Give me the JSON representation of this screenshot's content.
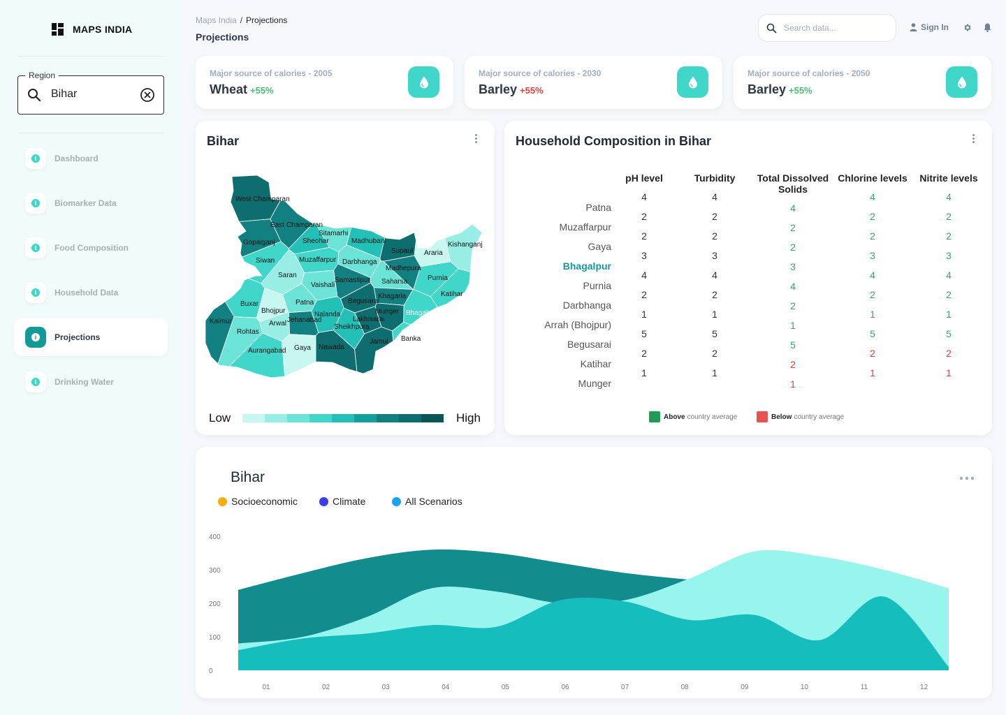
{
  "brand": {
    "name": "MAPS INDIA"
  },
  "region": {
    "label": "Region",
    "value": "Bihar"
  },
  "nav": [
    {
      "label": "Dashboard",
      "active": false
    },
    {
      "label": "Biomarker Data",
      "active": false
    },
    {
      "label": "Food Composition",
      "active": false
    },
    {
      "label": "Household Data",
      "active": false
    },
    {
      "label": "Projections",
      "active": true
    },
    {
      "label": "Drinking Water",
      "active": false
    }
  ],
  "header": {
    "breadcrumb_root": "Maps India",
    "breadcrumb_sep": "/",
    "breadcrumb_current": "Projections",
    "page_title": "Projections",
    "search_placeholder": "Search data...",
    "signin": "Sign In"
  },
  "stats": [
    {
      "label": "Major source of calories - 2005",
      "value": "Wheat",
      "change": "+55%",
      "direction": "up"
    },
    {
      "label": "Major source of calories - 2030",
      "value": "Barley",
      "change": "+55%",
      "direction": "down"
    },
    {
      "label": "Major source of calories - 2050",
      "value": "Barley",
      "change": "+55%",
      "direction": "up"
    }
  ],
  "map": {
    "title": "Bihar",
    "legend_low": "Low",
    "legend_high": "High",
    "legend_colors": [
      "#c8f7f2",
      "#98eee5",
      "#6be3d7",
      "#40d6c9",
      "#22c0b6",
      "#159f9b",
      "#127f80",
      "#0e6d6e",
      "#0b5556"
    ],
    "districts": [
      {
        "name": "West Champaran",
        "color": "#0e6d6e"
      },
      {
        "name": "East Champaran",
        "color": "#127f80"
      },
      {
        "name": "Sitamarhi",
        "color": "#6be3d7"
      },
      {
        "name": "Madhubani",
        "color": "#22c0b6"
      },
      {
        "name": "Supaul",
        "color": "#0e6d6e"
      },
      {
        "name": "Araria",
        "color": "#c8f7f2"
      },
      {
        "name": "Kishanganj",
        "color": "#98eee5"
      },
      {
        "name": "Gopalganj",
        "color": "#127f80"
      },
      {
        "name": "Sheohar",
        "color": "#22c0b6"
      },
      {
        "name": "Siwan",
        "color": "#40d6c9"
      },
      {
        "name": "Muzaffarpur",
        "color": "#40d6c9"
      },
      {
        "name": "Darbhanga",
        "color": "#6be3d7"
      },
      {
        "name": "Madhepura",
        "color": "#127f80"
      },
      {
        "name": "Purnia",
        "color": "#40d6c9"
      },
      {
        "name": "Saran",
        "color": "#98eee5"
      },
      {
        "name": "Vaishali",
        "color": "#6be3d7"
      },
      {
        "name": "Samastipur",
        "color": "#127f80"
      },
      {
        "name": "Saharsa",
        "color": "#6be3d7"
      },
      {
        "name": "Katihar",
        "color": "#40d6c9"
      },
      {
        "name": "Buxar",
        "color": "#40d6c9"
      },
      {
        "name": "Bhojpur",
        "color": "#c8f7f2"
      },
      {
        "name": "Patna",
        "color": "#6be3d7"
      },
      {
        "name": "Begusarai",
        "color": "#0e6d6e"
      },
      {
        "name": "Khagaria",
        "color": "#127f80"
      },
      {
        "name": "Kaimur",
        "color": "#127f80"
      },
      {
        "name": "Rohtas",
        "color": "#6be3d7"
      },
      {
        "name": "Arwal",
        "color": "#98eee5"
      },
      {
        "name": "Jehanabad",
        "color": "#127f80"
      },
      {
        "name": "Nalanda",
        "color": "#22c0b6"
      },
      {
        "name": "Sheikhpura",
        "color": "#22c0b6"
      },
      {
        "name": "Lakhisarai",
        "color": "#0e6d6e"
      },
      {
        "name": "Munger",
        "color": "#0e6d6e"
      },
      {
        "name": "Bhagalpur",
        "color": "#40d6c9"
      },
      {
        "name": "Aurangabad",
        "color": "#40d6c9"
      },
      {
        "name": "Gaya",
        "color": "#c8f7f2"
      },
      {
        "name": "Nawada",
        "color": "#0e6d6e"
      },
      {
        "name": "Jamui",
        "color": "#0e6d6e"
      },
      {
        "name": "Banka",
        "color": "#40d6c9"
      }
    ]
  },
  "household": {
    "title": "Household Composition in Bihar",
    "columns": [
      "pH level",
      "Turbidity",
      "Total Dissolved Solids",
      "Chlorine levels",
      "Nitrite levels"
    ],
    "rows": [
      {
        "district": "Patna",
        "highlight": false
      },
      {
        "district": "Muzaffarpur",
        "highlight": false
      },
      {
        "district": "Gaya",
        "highlight": false
      },
      {
        "district": "Bhagalpur",
        "highlight": true
      },
      {
        "district": "Purnia",
        "highlight": false
      },
      {
        "district": "Darbhanga",
        "highlight": false
      },
      {
        "district": "Arrah (Bhojpur)",
        "highlight": false
      },
      {
        "district": "Begusarai",
        "highlight": false
      },
      {
        "district": "Katihar",
        "highlight": false
      },
      {
        "district": "Munger",
        "highlight": false
      }
    ],
    "ph": [
      4,
      2,
      2,
      3,
      4,
      2,
      1,
      5,
      2,
      1
    ],
    "turbidity": [
      4,
      2,
      2,
      3,
      4,
      2,
      1,
      5,
      2,
      1
    ],
    "tds": [
      {
        "v": 4,
        "s": "good"
      },
      {
        "v": 2,
        "s": "good"
      },
      {
        "v": 2,
        "s": "good"
      },
      {
        "v": 3,
        "s": "good"
      },
      {
        "v": 4,
        "s": "good"
      },
      {
        "v": 2,
        "s": "good"
      },
      {
        "v": 1,
        "s": "good"
      },
      {
        "v": 5,
        "s": "good"
      },
      {
        "v": 2,
        "s": "bad"
      },
      {
        "v": 1,
        "s": "bad"
      }
    ],
    "chlorine": [
      {
        "v": 4,
        "s": "good"
      },
      {
        "v": 2,
        "s": "good"
      },
      {
        "v": 2,
        "s": "good"
      },
      {
        "v": 3,
        "s": "good"
      },
      {
        "v": 4,
        "s": "good"
      },
      {
        "v": 2,
        "s": "good"
      },
      {
        "v": 1,
        "s": "good"
      },
      {
        "v": 5,
        "s": "good"
      },
      {
        "v": 2,
        "s": "bad"
      },
      {
        "v": 1,
        "s": "bad"
      }
    ],
    "nitrite": [
      {
        "v": 4,
        "s": "good"
      },
      {
        "v": 2,
        "s": "good"
      },
      {
        "v": 2,
        "s": "good"
      },
      {
        "v": 3,
        "s": "good"
      },
      {
        "v": 4,
        "s": "good"
      },
      {
        "v": 2,
        "s": "good"
      },
      {
        "v": 1,
        "s": "good"
      },
      {
        "v": 5,
        "s": "good"
      },
      {
        "v": 2,
        "s": "bad"
      },
      {
        "v": 1,
        "s": "bad"
      }
    ],
    "legend": {
      "above_bold": "Above",
      "above_rest": "country average",
      "above_color": "#1f9d55",
      "below_bold": "Below",
      "below_rest": "country average",
      "below_color": "#e55353"
    }
  },
  "chart_data": {
    "type": "area",
    "title": "Bihar",
    "categories": [
      "01",
      "02",
      "03",
      "04",
      "05",
      "06",
      "07",
      "08",
      "09",
      "10",
      "11",
      "12"
    ],
    "ylim": [
      0,
      400
    ],
    "yticks": [
      0,
      100,
      200,
      300,
      400
    ],
    "legend": [
      {
        "name": "Socioeconomic",
        "color": "#f6ad10"
      },
      {
        "name": "Climate",
        "color": "#3d3df0"
      },
      {
        "name": "All Scenarios",
        "color": "#1aa3f2"
      }
    ],
    "series": [
      {
        "color": "#128c8c",
        "values": [
          240,
          290,
          335,
          360,
          350,
          320,
          290,
          270,
          250,
          240,
          230,
          210
        ]
      },
      {
        "color": "#98f5ee",
        "values": [
          80,
          100,
          160,
          245,
          235,
          200,
          210,
          275,
          355,
          340,
          300,
          245
        ]
      },
      {
        "color": "#16bdbd",
        "values": [
          60,
          95,
          110,
          135,
          130,
          210,
          205,
          150,
          165,
          90,
          220,
          10
        ]
      }
    ]
  }
}
